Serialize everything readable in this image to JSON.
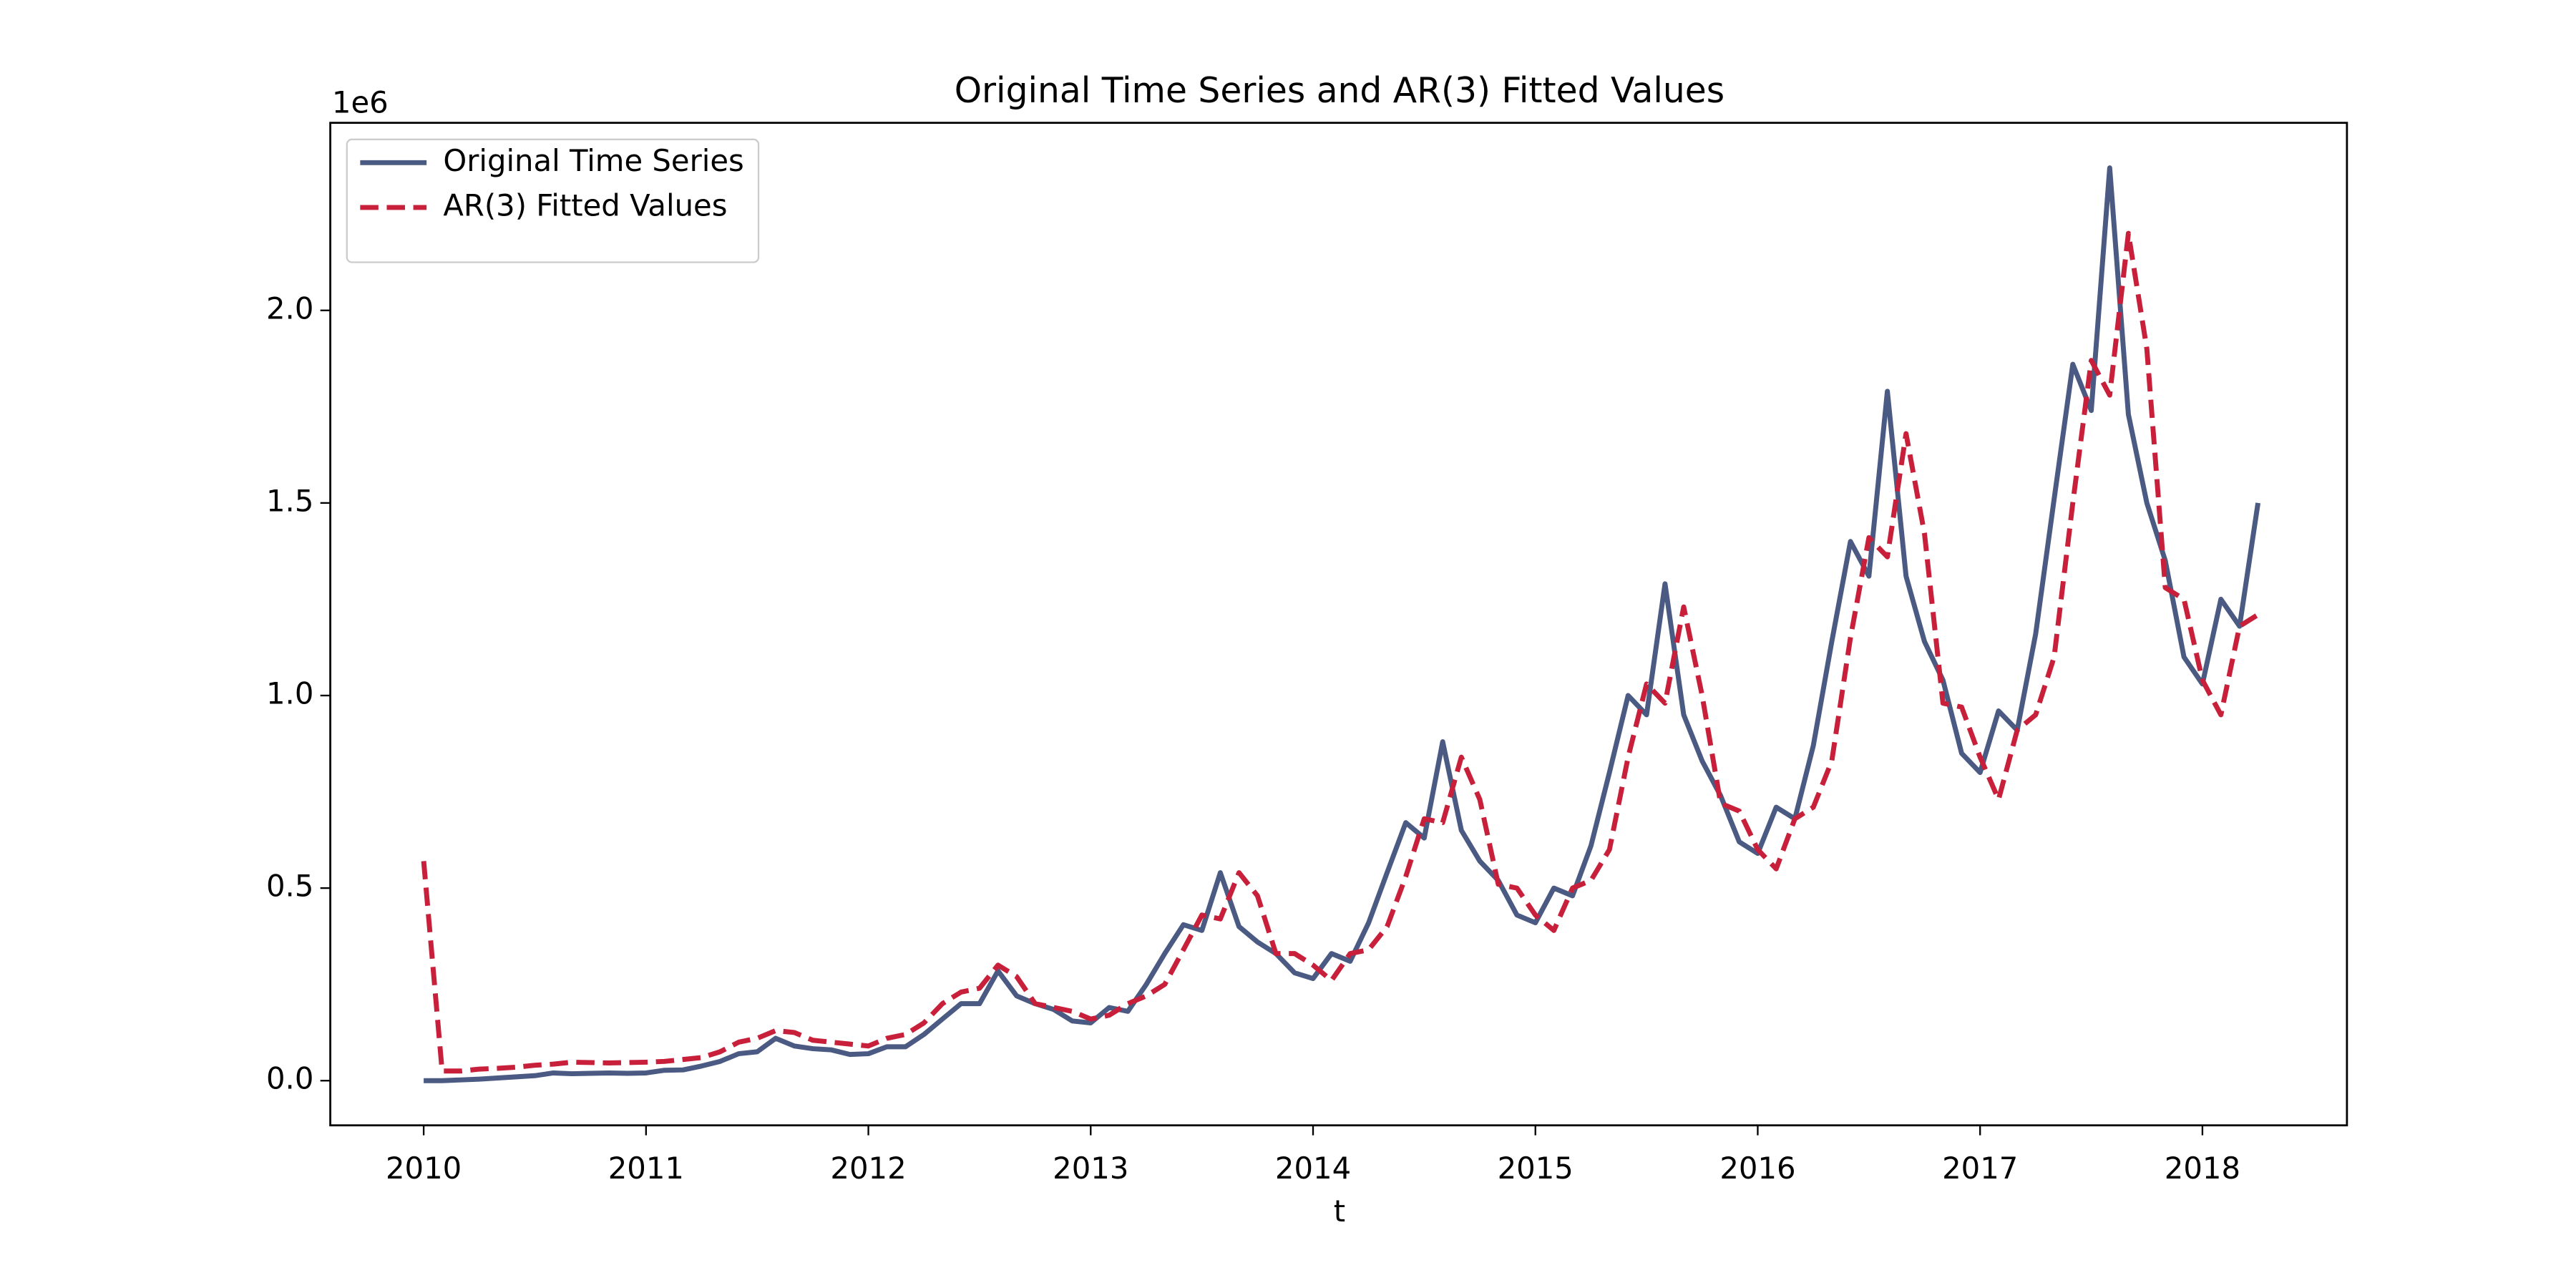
{
  "chart_data": {
    "type": "line",
    "title": "Original Time Series and AR(3) Fitted Values",
    "xlabel": "t",
    "y_offset_label": "1e6",
    "legend": "upper left",
    "xlim": [
      2009.58,
      2018.65
    ],
    "xticks": [
      2010,
      2011,
      2012,
      2013,
      2014,
      2015,
      2016,
      2017,
      2018
    ],
    "ylim": [
      -0.116,
      2.487
    ],
    "yticks": [
      {
        "value": 0,
        "label": "0.0"
      },
      {
        "value": 0.5,
        "label": "0.5"
      },
      {
        "value": 1,
        "label": "1.0"
      },
      {
        "value": 1.5,
        "label": "1.5"
      },
      {
        "value": 2,
        "label": "2.0"
      }
    ],
    "x": [
      2010,
      2010.083,
      2010.167,
      2010.25,
      2010.333,
      2010.417,
      2010.5,
      2010.583,
      2010.667,
      2010.75,
      2010.833,
      2010.917,
      2011,
      2011.083,
      2011.167,
      2011.25,
      2011.333,
      2011.417,
      2011.5,
      2011.583,
      2011.667,
      2011.75,
      2011.833,
      2011.917,
      2012,
      2012.083,
      2012.167,
      2012.25,
      2012.333,
      2012.417,
      2012.5,
      2012.583,
      2012.667,
      2012.75,
      2012.833,
      2012.917,
      2013,
      2013.083,
      2013.167,
      2013.25,
      2013.333,
      2013.417,
      2013.5,
      2013.583,
      2013.667,
      2013.75,
      2013.833,
      2013.917,
      2014,
      2014.083,
      2014.167,
      2014.25,
      2014.333,
      2014.417,
      2014.5,
      2014.583,
      2014.667,
      2014.75,
      2014.833,
      2014.917,
      2015,
      2015.083,
      2015.167,
      2015.25,
      2015.333,
      2015.417,
      2015.5,
      2015.583,
      2015.667,
      2015.75,
      2015.833,
      2015.917,
      2016,
      2016.083,
      2016.167,
      2016.25,
      2016.333,
      2016.417,
      2016.5,
      2016.583,
      2016.667,
      2016.75,
      2016.833,
      2016.917,
      2017,
      2017.083,
      2017.167,
      2017.25,
      2017.333,
      2017.417,
      2017.5,
      2017.583,
      2017.667,
      2017.75,
      2017.833,
      2017.917,
      2018,
      2018.083,
      2018.167,
      2018.25
    ],
    "series": [
      {
        "name": "Original Time Series",
        "color": "#4a5a82",
        "dashed": false,
        "values": [
          0,
          0,
          0.002,
          0.004,
          0.007,
          0.01,
          0.013,
          0.02,
          0.018,
          0.019,
          0.02,
          0.019,
          0.02,
          0.027,
          0.028,
          0.038,
          0.05,
          0.07,
          0.075,
          0.11,
          0.09,
          0.083,
          0.08,
          0.068,
          0.07,
          0.088,
          0.088,
          0.12,
          0.16,
          0.2,
          0.2,
          0.285,
          0.22,
          0.2,
          0.185,
          0.155,
          0.15,
          0.19,
          0.18,
          0.25,
          0.33,
          0.405,
          0.39,
          0.54,
          0.4,
          0.36,
          0.33,
          0.28,
          0.265,
          0.33,
          0.31,
          0.41,
          0.54,
          0.67,
          0.63,
          0.88,
          0.65,
          0.57,
          0.52,
          0.43,
          0.41,
          0.5,
          0.48,
          0.61,
          0.8,
          1.0,
          0.95,
          1.29,
          0.95,
          0.83,
          0.74,
          0.62,
          0.59,
          0.71,
          0.68,
          0.87,
          1.14,
          1.4,
          1.31,
          1.79,
          1.31,
          1.14,
          1.04,
          0.85,
          0.8,
          0.96,
          0.91,
          1.16,
          1.51,
          1.86,
          1.74,
          2.37,
          1.73,
          1.5,
          1.35,
          1.1,
          1.03,
          1.25,
          1.18,
          1.5
        ]
      },
      {
        "name": "AR(3) Fitted Values",
        "color": "#c8203a",
        "dashed": true,
        "values": [
          0.57,
          0.025,
          0.025,
          0.03,
          0.032,
          0.035,
          0.04,
          0.043,
          0.048,
          0.047,
          0.046,
          0.047,
          0.048,
          0.05,
          0.055,
          0.06,
          0.075,
          0.1,
          0.11,
          0.13,
          0.125,
          0.105,
          0.1,
          0.095,
          0.09,
          0.11,
          0.12,
          0.15,
          0.2,
          0.23,
          0.24,
          0.3,
          0.27,
          0.2,
          0.19,
          0.18,
          0.16,
          0.17,
          0.2,
          0.22,
          0.25,
          0.34,
          0.43,
          0.42,
          0.54,
          0.48,
          0.33,
          0.33,
          0.3,
          0.26,
          0.33,
          0.34,
          0.4,
          0.53,
          0.68,
          0.67,
          0.84,
          0.73,
          0.51,
          0.5,
          0.43,
          0.39,
          0.5,
          0.52,
          0.6,
          0.84,
          1.03,
          0.98,
          1.23,
          1.0,
          0.72,
          0.7,
          0.6,
          0.55,
          0.68,
          0.71,
          0.83,
          1.15,
          1.41,
          1.36,
          1.68,
          1.42,
          0.98,
          0.97,
          0.84,
          0.73,
          0.91,
          0.95,
          1.1,
          1.5,
          1.87,
          1.78,
          2.2,
          1.9,
          1.28,
          1.25,
          1.04,
          0.95,
          1.18,
          1.21
        ]
      }
    ]
  }
}
